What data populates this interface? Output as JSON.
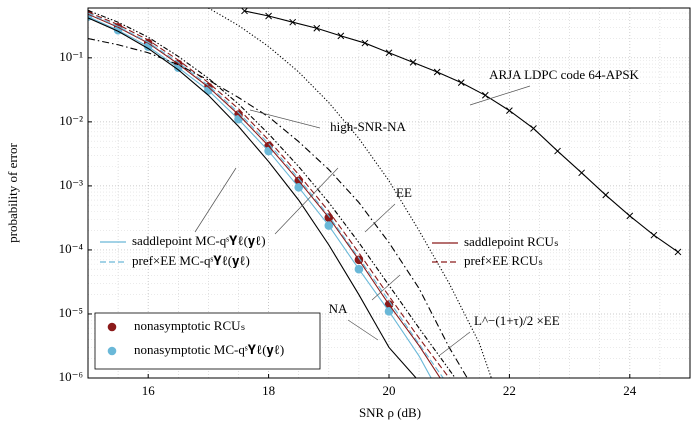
{
  "chart_data": {
    "type": "line",
    "x_label": "SNR ρ (dB)",
    "y_label": "probability of error",
    "xlim": [
      15,
      25
    ],
    "xticks": [
      16,
      18,
      20,
      22,
      24
    ],
    "ylim": [
      1e-06,
      0.6
    ],
    "log_y": true,
    "grid": true,
    "yticks": [
      {
        "value": 1e-06,
        "label": "10⁻⁶"
      },
      {
        "value": 1e-05,
        "label": "10⁻⁵"
      },
      {
        "value": 0.0001,
        "label": "10⁻⁴"
      },
      {
        "value": 0.001,
        "label": "10⁻³"
      },
      {
        "value": 0.01,
        "label": "10⁻²"
      },
      {
        "value": 0.1,
        "label": "10⁻¹"
      }
    ],
    "series": [
      {
        "name": "nonasymptotic RCUₛ",
        "color": "#8b1a1a",
        "style": "none",
        "marker": "circle",
        "x": [
          15,
          15.5,
          16,
          16.5,
          17,
          17.5,
          18,
          18.5,
          19,
          19.5,
          20
        ],
        "values": [
          0.48,
          0.3,
          0.17,
          0.08,
          0.035,
          0.013,
          0.0042,
          0.0012,
          0.00032,
          7e-05,
          1.4e-05
        ]
      },
      {
        "name": "nonasymptotic MC-qˢ𝐘ℓ(𝐲ℓ)",
        "color": "#6ab8d8",
        "style": "none",
        "marker": "circle",
        "x": [
          15,
          15.5,
          16,
          16.5,
          17,
          17.5,
          18,
          18.5,
          19,
          19.5,
          20
        ],
        "values": [
          0.44,
          0.27,
          0.15,
          0.07,
          0.031,
          0.011,
          0.0035,
          0.00095,
          0.00024,
          5e-05,
          1.1e-05
        ]
      },
      {
        "name": "saddlepoint RCUₛ",
        "color": "#8b1a1a",
        "style": "solid",
        "marker": "none",
        "x": [
          15,
          15.5,
          16,
          16.5,
          17,
          17.5,
          18,
          18.5,
          19,
          19.5,
          20,
          20.5,
          20.85
        ],
        "values": [
          0.48,
          0.3,
          0.17,
          0.08,
          0.035,
          0.013,
          0.0042,
          0.0012,
          0.00032,
          7e-05,
          1.4e-05,
          3.2e-06,
          1e-06
        ]
      },
      {
        "name": "saddlepoint MC-qˢ𝐘ℓ(𝐲ℓ)",
        "color": "#6ab8d8",
        "style": "solid",
        "marker": "none",
        "x": [
          15,
          15.5,
          16,
          16.5,
          17,
          17.5,
          18,
          18.5,
          19,
          19.5,
          20,
          20.5,
          20.7
        ],
        "values": [
          0.44,
          0.27,
          0.15,
          0.07,
          0.031,
          0.011,
          0.0035,
          0.00095,
          0.00024,
          5e-05,
          1.1e-05,
          2.2e-06,
          1e-06
        ]
      },
      {
        "name": "pref×EE RCUₛ",
        "color": "#8b1a1a",
        "style": "dashed",
        "marker": "none",
        "x": [
          15,
          15.5,
          16,
          16.5,
          17,
          17.5,
          18,
          18.5,
          19,
          19.5,
          20,
          20.5,
          21
        ],
        "values": [
          0.52,
          0.33,
          0.19,
          0.092,
          0.041,
          0.016,
          0.0052,
          0.0015,
          0.0004,
          9e-05,
          1.9e-05,
          4.2e-06,
          1e-06
        ]
      },
      {
        "name": "pref×EE MC-qˢ𝐘ℓ(𝐲ℓ)",
        "color": "#6ab8d8",
        "style": "dashed",
        "marker": "none",
        "x": [
          15,
          15.5,
          16,
          16.5,
          17,
          17.5,
          18,
          18.5,
          19,
          19.5,
          20,
          20.5,
          20.9
        ],
        "values": [
          0.5,
          0.31,
          0.175,
          0.085,
          0.037,
          0.014,
          0.0046,
          0.0013,
          0.00034,
          7.5e-05,
          1.6e-05,
          3.4e-06,
          1e-06
        ]
      },
      {
        "name": "NA",
        "color": "#000000",
        "style": "solid",
        "marker": "none",
        "x": [
          15,
          15.5,
          16,
          16.5,
          17,
          17.5,
          18,
          18.5,
          19,
          19.5,
          20,
          20.45
        ],
        "values": [
          0.42,
          0.26,
          0.14,
          0.065,
          0.026,
          0.0085,
          0.0024,
          0.0006,
          0.00012,
          2e-05,
          3e-06,
          1e-06
        ]
      },
      {
        "name": "high-SNR-NA",
        "color": "#000000",
        "style": "dashdot",
        "marker": "none",
        "x": [
          15,
          15.5,
          16,
          16.5,
          17,
          17.5,
          18,
          18.5,
          19,
          19.5,
          20,
          20.5,
          21,
          21.3
        ],
        "values": [
          0.2,
          0.16,
          0.12,
          0.078,
          0.045,
          0.024,
          0.012,
          0.0049,
          0.0018,
          0.00055,
          0.00013,
          2.5e-05,
          3e-06,
          1e-06
        ]
      },
      {
        "name": "EE",
        "color": "#000000",
        "style": "dotted",
        "marker": "none",
        "x": [
          17,
          17.5,
          18,
          18.5,
          19,
          19.5,
          20,
          20.5,
          21,
          21.5,
          21.7
        ],
        "values": [
          0.6,
          0.32,
          0.15,
          0.06,
          0.02,
          0.0055,
          0.0012,
          0.0002,
          3e-05,
          3.5e-06,
          1e-06
        ]
      },
      {
        "name": "L^−(1+τ)/2 ×EE",
        "color": "#000000",
        "style": "dashdot2",
        "marker": "none",
        "x": [
          15,
          15.5,
          16,
          16.5,
          17,
          17.5,
          18,
          18.5,
          19,
          19.5,
          20,
          20.5,
          21.1
        ],
        "values": [
          0.55,
          0.36,
          0.21,
          0.105,
          0.048,
          0.019,
          0.0065,
          0.002,
          0.00055,
          0.00013,
          2.8e-05,
          6e-06,
          1e-06
        ]
      },
      {
        "name": "ARJA LDPC code 64-APSK",
        "color": "#000000",
        "style": "solid",
        "marker": "x",
        "x": [
          17.6,
          18,
          18.4,
          18.8,
          19.2,
          19.6,
          20,
          20.4,
          20.8,
          21.2,
          21.6,
          22,
          22.4,
          22.8,
          23.2,
          23.6,
          24,
          24.4,
          24.8
        ],
        "values": [
          0.54,
          0.45,
          0.36,
          0.29,
          0.22,
          0.17,
          0.12,
          0.085,
          0.06,
          0.041,
          0.026,
          0.015,
          0.0079,
          0.0035,
          0.0016,
          0.00072,
          0.00034,
          0.00017,
          9.3e-05
        ]
      }
    ]
  }
}
